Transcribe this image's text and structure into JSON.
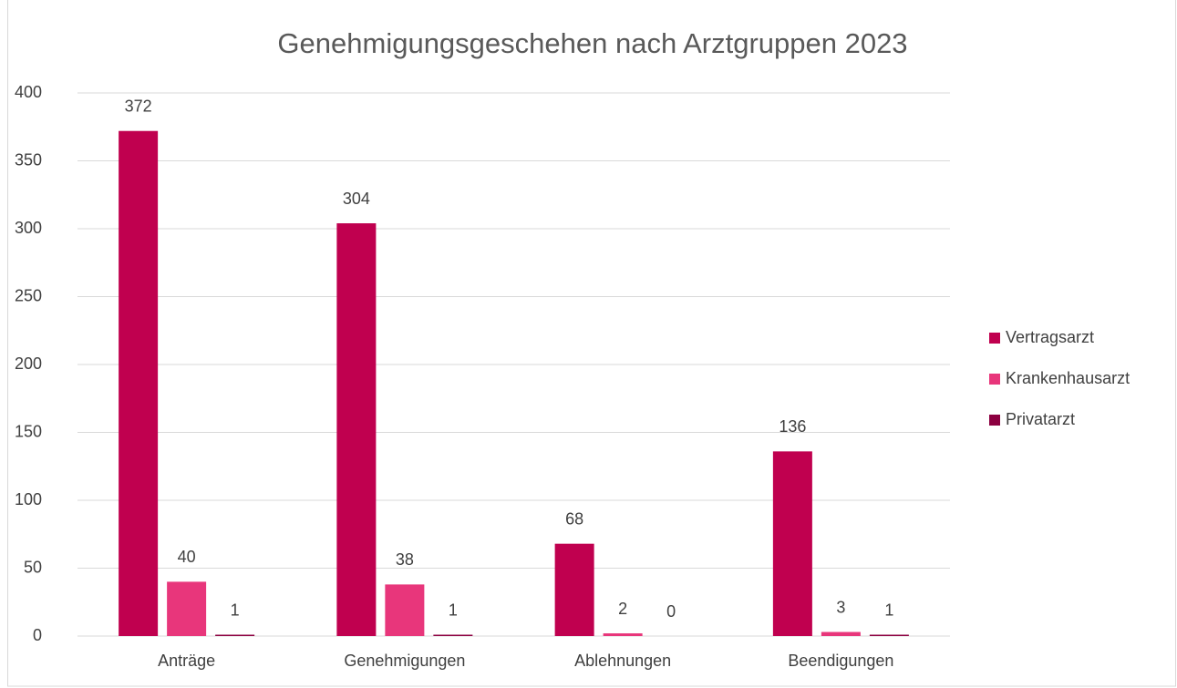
{
  "chart_data": {
    "type": "bar",
    "title": "Genehmigungsgeschehen nach Arztgruppen 2023",
    "categories": [
      "Anträge",
      "Genehmigungen",
      "Ablehnungen",
      "Beendigungen"
    ],
    "series": [
      {
        "name": "Vertragsarzt",
        "color": "#c0004f",
        "values": [
          372,
          304,
          68,
          136
        ]
      },
      {
        "name": "Krankenhausarzt",
        "color": "#e8367b",
        "values": [
          40,
          38,
          2,
          3
        ]
      },
      {
        "name": "Privatarzt",
        "color": "#8c0040",
        "values": [
          1,
          1,
          0,
          1
        ]
      }
    ],
    "ylim": [
      0,
      400
    ],
    "yticks": [
      0,
      50,
      100,
      150,
      200,
      250,
      300,
      350,
      400
    ],
    "grid": true,
    "legend": "right"
  }
}
